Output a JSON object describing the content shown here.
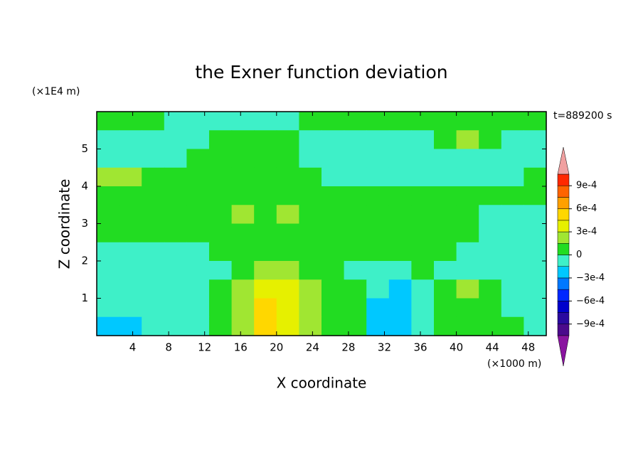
{
  "chart_data": {
    "type": "contour",
    "title": "the Exner function deviation",
    "xlabel": "X coordinate",
    "ylabel": "Z coordinate",
    "x_unit": "(×1000 m)",
    "y_unit": "(×1E4 m)",
    "annotation": "t=889200 s",
    "xlim": [
      0,
      50
    ],
    "ylim": [
      0,
      6
    ],
    "xticks": [
      4,
      8,
      12,
      16,
      20,
      24,
      28,
      32,
      36,
      40,
      44,
      48
    ],
    "yticks": [
      1,
      2,
      3,
      4,
      5
    ],
    "x": [
      1.25,
      3.75,
      6.25,
      8.75,
      11.25,
      13.75,
      16.25,
      18.75,
      21.25,
      23.75,
      26.25,
      28.75,
      31.25,
      33.75,
      36.25,
      38.75,
      41.25,
      43.75,
      46.25,
      48.75
    ],
    "y": [
      5.75,
      5.25,
      4.75,
      4.25,
      3.75,
      3.25,
      2.75,
      2.25,
      1.75,
      1.25,
      0.75,
      0.25
    ],
    "z": [
      [
        0.0001,
        0.0001,
        0.0001,
        -0.0001,
        -0.0001,
        -0.0001,
        -0.0001,
        -0.0001,
        -0.0001,
        0.0001,
        0.0001,
        0.0001,
        0.0001,
        0.0001,
        0.0001,
        0.0001,
        0.0001,
        0.0001,
        0.0001,
        0.0001
      ],
      [
        -0.0001,
        -0.0001,
        -0.0001,
        -0.0001,
        -0.0001,
        0.0001,
        0.0001,
        0.0001,
        0.0001,
        -0.0001,
        -0.0001,
        -0.0001,
        -0.0001,
        -0.0001,
        -0.0001,
        0.0001,
        0.0002,
        0.0001,
        -0.0001,
        -0.0001
      ],
      [
        -0.0001,
        -0.0001,
        -0.0001,
        -0.0001,
        0.0001,
        0.0001,
        0.0001,
        0.0001,
        0.0001,
        -0.0001,
        -0.0001,
        -0.0001,
        -0.0001,
        -0.0001,
        -0.0001,
        -0.0001,
        -0.0001,
        -0.0001,
        -0.0001,
        -0.0001
      ],
      [
        0.0002,
        0.0002,
        0.0001,
        0.0001,
        0.0001,
        0.0001,
        0.0001,
        0.0001,
        0.0001,
        0.0001,
        -0.0001,
        -0.0001,
        -0.0001,
        -0.0001,
        -0.0001,
        -0.0001,
        -0.0001,
        -0.0001,
        -0.0001,
        0.0001
      ],
      [
        0.0001,
        0.0001,
        0.0001,
        0.0001,
        0.0001,
        0.0001,
        0.0001,
        0.0001,
        0.0001,
        0.0001,
        0.0001,
        0.0001,
        0.0001,
        0.0001,
        0.0001,
        0.0001,
        0.0001,
        0.0001,
        0.0001,
        0.0001
      ],
      [
        0.0001,
        0.0001,
        0.0001,
        0.0001,
        0.0001,
        0.0001,
        0.0002,
        0.0001,
        0.0002,
        0.0001,
        0.0001,
        0.0001,
        0.0001,
        0.0001,
        0.0001,
        0.0001,
        0.0001,
        -0.0001,
        -0.0001,
        -0.0001
      ],
      [
        0.0001,
        0.0001,
        0.0001,
        0.0001,
        0.0001,
        0.0001,
        0.0001,
        0.0001,
        0.0001,
        0.0001,
        0.0001,
        0.0001,
        0.0001,
        0.0001,
        0.0001,
        0.0001,
        0.0001,
        -0.0001,
        -0.0001,
        -0.0001
      ],
      [
        -0.0001,
        -0.0001,
        -0.0001,
        -0.0001,
        -0.0001,
        0.0001,
        0.0001,
        0.0001,
        0.0001,
        0.0001,
        0.0001,
        0.0001,
        0.0001,
        0.0001,
        0.0001,
        0.0001,
        -0.0001,
        -0.0001,
        -0.0001,
        -0.0001
      ],
      [
        -0.0001,
        -0.0001,
        -0.0001,
        -0.0001,
        -0.0001,
        -0.0001,
        0.0001,
        0.0002,
        0.0002,
        0.0001,
        0.0001,
        -0.0001,
        -0.0001,
        -0.0001,
        0.0001,
        -0.0001,
        -0.0001,
        -0.0001,
        -0.0001,
        -0.0001
      ],
      [
        -0.0001,
        -0.0001,
        -0.0001,
        -0.0001,
        -0.0001,
        0.0001,
        0.0002,
        0.0004,
        0.0004,
        0.0002,
        0.0001,
        0.0001,
        -0.0001,
        -0.0002,
        -0.0001,
        0.0001,
        0.0002,
        0.0001,
        -0.0001,
        -0.0001
      ],
      [
        -0.0001,
        -0.0001,
        -0.0001,
        -0.0001,
        -0.0001,
        0.0001,
        0.0002,
        0.0005,
        0.0004,
        0.0002,
        0.0001,
        0.0001,
        -0.0002,
        -0.0002,
        -0.0001,
        0.0001,
        0.0001,
        0.0001,
        -0.0001,
        -0.0001
      ],
      [
        -0.0002,
        -0.0002,
        -0.0001,
        -0.0001,
        -0.0001,
        0.0001,
        0.0002,
        0.0005,
        0.0004,
        0.0002,
        0.0001,
        0.0001,
        -0.0002,
        -0.0002,
        -0.0001,
        0.0001,
        0.0001,
        0.0001,
        0.0001,
        -0.0001
      ]
    ],
    "colorbar": {
      "levels": [
        -0.00105,
        -0.0009,
        -0.00075,
        -0.0006,
        -0.00045,
        -0.0003,
        -0.00015,
        0,
        0.00015,
        0.0003,
        0.00045,
        0.0006,
        0.00075,
        0.0009,
        0.00105
      ],
      "colors": [
        "#4b0a8c",
        "#2a0aa0",
        "#0000cc",
        "#0028ff",
        "#0078ff",
        "#00c8ff",
        "#3ef0c8",
        "#22dc22",
        "#a0e632",
        "#e6f000",
        "#ffd700",
        "#ffa000",
        "#ff6400",
        "#ff2800"
      ],
      "under_color": "#8a14a0",
      "over_color": "#f0a0a0",
      "ticks": [
        {
          "value": -0.0009,
          "label": "−9e-4"
        },
        {
          "value": -0.0006,
          "label": "−6e-4"
        },
        {
          "value": -0.0003,
          "label": "−3e-4"
        },
        0,
        {
          "value": 0.0003,
          "label": "3e-4"
        },
        {
          "value": 0.0006,
          "label": "6e-4"
        },
        {
          "value": 0.0009,
          "label": "9e-4"
        }
      ]
    }
  }
}
